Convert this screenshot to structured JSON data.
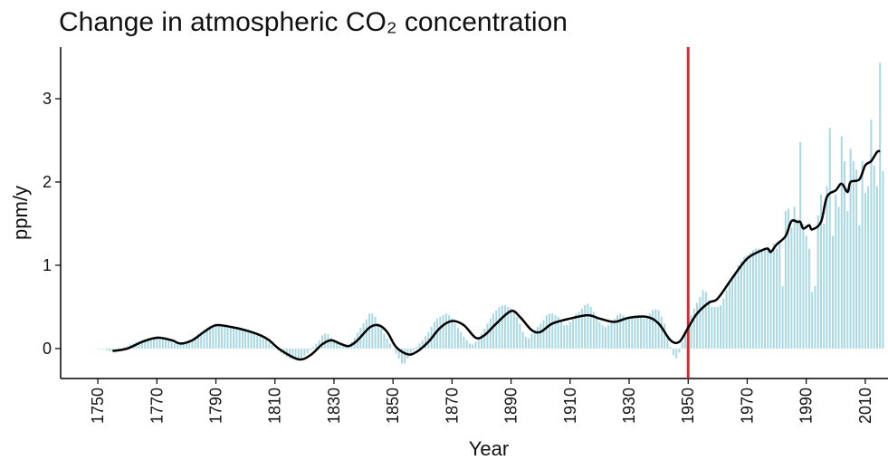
{
  "chart_data": {
    "type": "bar-line",
    "title": "Change in atmospheric CO₂ concentration",
    "x_label": "Year",
    "y_label": "ppm/y",
    "xlim": [
      1737.4,
      2017.7
    ],
    "xticks": [
      1750,
      1770,
      1790,
      1810,
      1830,
      1850,
      1870,
      1890,
      1910,
      1930,
      1950,
      1970,
      1990,
      2010
    ],
    "ylim": [
      -0.36,
      3.62
    ],
    "yticks": [
      0,
      1,
      2,
      3
    ],
    "bars": {
      "color": "#a8d8e2",
      "x": [
        1750,
        1751,
        1752,
        1753,
        1754,
        1755,
        1756,
        1757,
        1758,
        1759,
        1760,
        1761,
        1762,
        1763,
        1764,
        1765,
        1766,
        1767,
        1768,
        1769,
        1770,
        1771,
        1772,
        1773,
        1774,
        1775,
        1776,
        1777,
        1778,
        1779,
        1780,
        1781,
        1782,
        1783,
        1784,
        1785,
        1786,
        1787,
        1788,
        1789,
        1790,
        1791,
        1792,
        1793,
        1794,
        1795,
        1796,
        1797,
        1798,
        1799,
        1800,
        1801,
        1802,
        1803,
        1804,
        1805,
        1806,
        1807,
        1808,
        1809,
        1810,
        1811,
        1812,
        1813,
        1814,
        1815,
        1816,
        1817,
        1818,
        1819,
        1820,
        1821,
        1822,
        1823,
        1824,
        1825,
        1826,
        1827,
        1828,
        1829,
        1830,
        1831,
        1832,
        1833,
        1834,
        1835,
        1836,
        1837,
        1838,
        1839,
        1840,
        1841,
        1842,
        1843,
        1844,
        1845,
        1846,
        1847,
        1848,
        1849,
        1850,
        1851,
        1852,
        1853,
        1854,
        1855,
        1856,
        1857,
        1858,
        1859,
        1860,
        1861,
        1862,
        1863,
        1864,
        1865,
        1866,
        1867,
        1868,
        1869,
        1870,
        1871,
        1872,
        1873,
        1874,
        1875,
        1876,
        1877,
        1878,
        1879,
        1880,
        1881,
        1882,
        1883,
        1884,
        1885,
        1886,
        1887,
        1888,
        1889,
        1890,
        1891,
        1892,
        1893,
        1894,
        1895,
        1896,
        1897,
        1898,
        1899,
        1900,
        1901,
        1902,
        1903,
        1904,
        1905,
        1906,
        1907,
        1908,
        1909,
        1910,
        1911,
        1912,
        1913,
        1914,
        1915,
        1916,
        1917,
        1918,
        1919,
        1920,
        1921,
        1922,
        1923,
        1924,
        1925,
        1926,
        1927,
        1928,
        1929,
        1930,
        1931,
        1932,
        1933,
        1934,
        1935,
        1936,
        1937,
        1938,
        1939,
        1940,
        1941,
        1942,
        1943,
        1944,
        1945,
        1946,
        1947,
        1948,
        1949,
        1950,
        1951,
        1952,
        1953,
        1954,
        1955,
        1956,
        1957,
        1958,
        1959,
        1960,
        1961,
        1962,
        1963,
        1964,
        1965,
        1966,
        1967,
        1968,
        1969,
        1970,
        1971,
        1972,
        1973,
        1974,
        1975,
        1976,
        1977,
        1978,
        1979,
        1980,
        1981,
        1982,
        1983,
        1984,
        1985,
        1986,
        1987,
        1988,
        1989,
        1990,
        1991,
        1992,
        1993,
        1994,
        1995,
        1996,
        1997,
        1998,
        1999,
        2000,
        2001,
        2002,
        2003,
        2004,
        2005,
        2006,
        2007,
        2008,
        2009,
        2010,
        2011,
        2012,
        2013,
        2014,
        2015,
        2016
      ],
      "values": [
        0,
        0,
        -0.01,
        -0.02,
        -0.03,
        -0.03,
        -0.02,
        -0.01,
        0,
        0.02,
        0.03,
        0.05,
        0.06,
        0.08,
        0.09,
        0.1,
        0.11,
        0.12,
        0.13,
        0.13,
        0.13,
        0.13,
        0.12,
        0.11,
        0.1,
        0.08,
        0.06,
        0.05,
        0.05,
        0.06,
        0.07,
        0.09,
        0.11,
        0.14,
        0.17,
        0.2,
        0.23,
        0.25,
        0.27,
        0.28,
        0.28,
        0.28,
        0.28,
        0.27,
        0.27,
        0.26,
        0.25,
        0.24,
        0.23,
        0.22,
        0.21,
        0.2,
        0.19,
        0.18,
        0.16,
        0.14,
        0.12,
        0.1,
        0.07,
        0.04,
        0.01,
        -0.02,
        -0.05,
        -0.08,
        -0.1,
        -0.12,
        -0.13,
        -0.14,
        -0.13,
        -0.11,
        -0.09,
        -0.06,
        -0.02,
        0.02,
        0.06,
        0.1,
        0.16,
        0.18,
        0.17,
        0.13,
        0.1,
        0.07,
        0.04,
        0.02,
        0.02,
        0.04,
        0.08,
        0.13,
        0.19,
        0.25,
        0.3,
        0.35,
        0.42,
        0.42,
        0.38,
        0.3,
        0.24,
        0.18,
        0.12,
        0.06,
        0,
        -0.06,
        -0.12,
        -0.18,
        -0.18,
        -0.12,
        -0.06,
        -0.02,
        0.02,
        0.06,
        0.1,
        0.15,
        0.2,
        0.26,
        0.32,
        0.36,
        0.38,
        0.4,
        0.42,
        0.4,
        0.36,
        0.3,
        0.25,
        0.2,
        0.14,
        0.1,
        0.06,
        0.05,
        0.08,
        0.12,
        0.18,
        0.24,
        0.3,
        0.36,
        0.42,
        0.46,
        0.5,
        0.52,
        0.52,
        0.5,
        0.48,
        0.44,
        0.38,
        0.3,
        0.2,
        0.14,
        0.12,
        0.18,
        0.22,
        0.26,
        0.3,
        0.34,
        0.4,
        0.42,
        0.42,
        0.4,
        0.38,
        0.32,
        0.28,
        0.28,
        0.32,
        0.36,
        0.42,
        0.44,
        0.48,
        0.52,
        0.54,
        0.5,
        0.44,
        0.38,
        0.32,
        0.28,
        0.26,
        0.28,
        0.32,
        0.36,
        0.4,
        0.42,
        0.4,
        0.38,
        0.36,
        0.38,
        0.4,
        0.4,
        0.38,
        0.36,
        0.38,
        0.42,
        0.46,
        0.47,
        0.46,
        0.38,
        0.3,
        0.15,
        0.02,
        -0.08,
        -0.12,
        -0.05,
        0.08,
        0.2,
        0.32,
        0.4,
        0.48,
        0.55,
        0.62,
        0.7,
        0.68,
        0.58,
        0.5,
        0.5,
        0.5,
        0.52,
        0.6,
        0.7,
        0.78,
        0.86,
        0.92,
        1.0,
        1.05,
        1.1,
        1.12,
        1.15,
        1.18,
        1.2,
        1.2,
        1.18,
        1.2,
        1.22,
        1.18,
        1.26,
        1.2,
        1.3,
        0.75,
        1.65,
        1.68,
        1.45,
        1.7,
        1.55,
        2.48,
        1.5,
        1.35,
        1.2,
        0.68,
        0.75,
        1.6,
        1.85,
        1.5,
        1.95,
        2.65,
        1.35,
        1.85,
        1.7,
        2.55,
        2.25,
        1.65,
        2.4,
        2.25,
        2.15,
        1.48,
        2.25,
        1.87,
        1.95,
        2.75,
        2.2,
        1.95,
        3.43,
        2.13
      ]
    },
    "line": {
      "color": "#000000",
      "x": [
        1755,
        1760,
        1765,
        1770,
        1775,
        1778,
        1782,
        1786,
        1790,
        1795,
        1800,
        1805,
        1808,
        1812,
        1818,
        1822,
        1826,
        1829,
        1832,
        1835,
        1838,
        1842,
        1845,
        1848,
        1851,
        1855,
        1858,
        1862,
        1866,
        1870,
        1874,
        1878,
        1881,
        1885,
        1890,
        1893,
        1897,
        1900,
        1904,
        1910,
        1916,
        1920,
        1925,
        1930,
        1936,
        1940,
        1944,
        1947,
        1950,
        1953,
        1957,
        1960,
        1965,
        1970,
        1975,
        1977,
        1978,
        1980,
        1983,
        1985,
        1987,
        1988,
        1989,
        1991,
        1992,
        1995,
        1997,
        2000,
        2002,
        2004,
        2005,
        2008,
        2010,
        2012,
        2014,
        2015
      ],
      "values": [
        -0.03,
        0.0,
        0.08,
        0.13,
        0.1,
        0.06,
        0.1,
        0.2,
        0.28,
        0.26,
        0.22,
        0.16,
        0.1,
        -0.02,
        -0.13,
        -0.08,
        0.05,
        0.1,
        0.06,
        0.03,
        0.1,
        0.25,
        0.28,
        0.2,
        0.02,
        -0.07,
        -0.04,
        0.08,
        0.25,
        0.33,
        0.28,
        0.13,
        0.16,
        0.3,
        0.45,
        0.38,
        0.22,
        0.2,
        0.3,
        0.36,
        0.4,
        0.36,
        0.32,
        0.37,
        0.38,
        0.3,
        0.1,
        0.08,
        0.25,
        0.42,
        0.55,
        0.6,
        0.85,
        1.08,
        1.18,
        1.2,
        1.16,
        1.25,
        1.35,
        1.53,
        1.52,
        1.52,
        1.44,
        1.48,
        1.43,
        1.52,
        1.82,
        1.9,
        1.98,
        1.88,
        2.0,
        2.03,
        2.2,
        2.25,
        2.36,
        2.37
      ]
    },
    "vline": {
      "x": 1950,
      "color": "#e3262b"
    }
  }
}
